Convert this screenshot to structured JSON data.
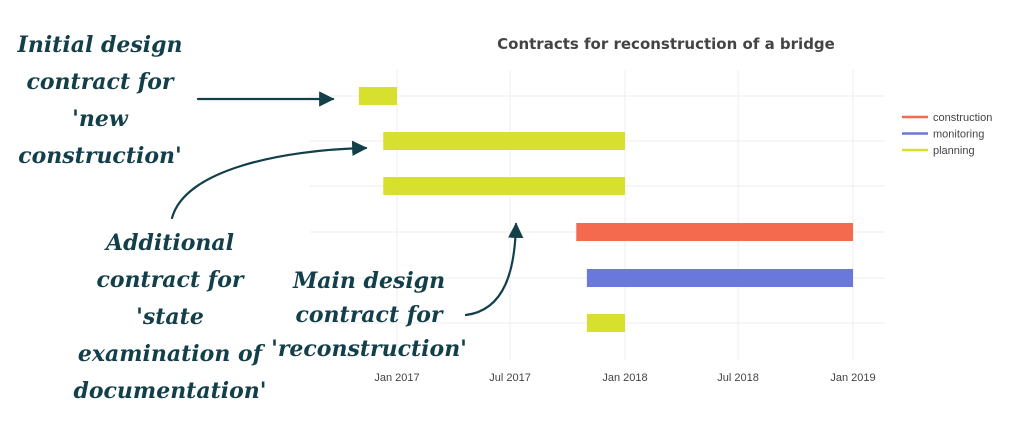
{
  "chart_data": {
    "type": "gantt",
    "title": "Contracts for reconstruction of a bridge",
    "xlabel": "",
    "ylabel": "",
    "x_tick_labels": [
      "Jan 2017",
      "Jul 2017",
      "Jan 2018",
      "Jul 2018",
      "Jan 2019"
    ],
    "x_ticks": [
      "2017-01-01",
      "2017-07-01",
      "2018-01-01",
      "2018-07-01",
      "2019-01-01"
    ],
    "xlim": [
      "2016-08-15",
      "2019-01-15"
    ],
    "grid": true,
    "legend_placement": "right",
    "colors": {
      "construction": "#f46a4e",
      "monitoring": "#6b78db",
      "planning": "#d7e02f"
    },
    "series": [
      {
        "name": "construction"
      },
      {
        "name": "monitoring"
      },
      {
        "name": "planning"
      }
    ],
    "tasks": [
      {
        "category": "planning",
        "start": "2016-11-01",
        "end": "2017-01-01"
      },
      {
        "category": "planning",
        "start": "2016-12-10",
        "end": "2018-01-01"
      },
      {
        "category": "planning",
        "start": "2016-12-10",
        "end": "2018-01-01"
      },
      {
        "category": "construction",
        "start": "2017-10-15",
        "end": "2019-01-01"
      },
      {
        "category": "monitoring",
        "start": "2017-11-01",
        "end": "2019-01-01"
      },
      {
        "category": "planning",
        "start": "2017-11-01",
        "end": "2018-01-01"
      }
    ]
  },
  "annotations": [
    {
      "text": "Initial design contract for 'new construction'",
      "lines": [
        "Initial design",
        "contract for",
        "'new",
        "construction'"
      ]
    },
    {
      "text": "Additional contract for 'state examination of documentation'",
      "lines": [
        "Additional",
        "contract for",
        "'state",
        "examination of",
        "documentation'"
      ]
    },
    {
      "text": "Main design contract for 'reconstruction'",
      "lines": [
        "Main design",
        "contract for",
        "'reconstruction'"
      ]
    }
  ]
}
